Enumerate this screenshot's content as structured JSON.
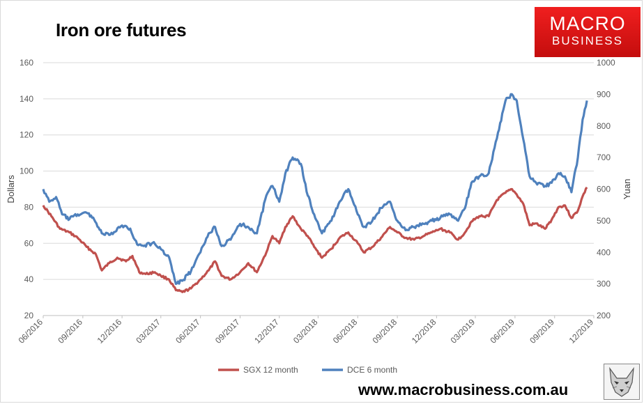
{
  "page": {
    "title": "Iron ore futures",
    "logo": {
      "line1": "MACRO",
      "line2": "BUSINESS"
    },
    "website": "www.macrobusiness.com.au"
  },
  "colors": {
    "sgx": "#c0504d",
    "dce": "#4f81bd",
    "logo_red": "#e21b1b"
  },
  "chart_data": {
    "type": "line",
    "title": "Iron ore futures",
    "x_axis": {
      "type": "date",
      "range": [
        "2016-06",
        "2019-12"
      ],
      "tick_labels": [
        "06/2016",
        "09/2016",
        "12/2016",
        "03/2017",
        "06/2017",
        "09/2017",
        "12/2017",
        "03/2018",
        "06/2018",
        "09/2018",
        "12/2018",
        "03/2019",
        "06/2019",
        "09/2019",
        "12/2019"
      ]
    },
    "y_left": {
      "label": "Dollars",
      "range": [
        20,
        160
      ],
      "ticks": [
        20,
        40,
        60,
        80,
        100,
        120,
        140,
        160
      ]
    },
    "y_right": {
      "label": "Yuan",
      "range": [
        200,
        1000
      ],
      "ticks": [
        200,
        300,
        400,
        500,
        600,
        700,
        800,
        900,
        1000
      ]
    },
    "grid": "horizontal",
    "legend_position": "bottom",
    "series": [
      {
        "name": "SGX 12 month",
        "axis": "left",
        "color": "#c0504d",
        "points": [
          [
            "2016-06-01",
            81
          ],
          [
            "2016-06-20",
            75
          ],
          [
            "2016-07-10",
            68
          ],
          [
            "2016-08-01",
            66
          ],
          [
            "2016-08-20",
            63
          ],
          [
            "2016-09-10",
            58
          ],
          [
            "2016-10-01",
            54
          ],
          [
            "2016-10-15",
            45
          ],
          [
            "2016-11-01",
            49
          ],
          [
            "2016-11-20",
            52
          ],
          [
            "2016-12-10",
            50
          ],
          [
            "2016-12-25",
            53
          ],
          [
            "2017-01-10",
            44
          ],
          [
            "2017-01-25",
            43
          ],
          [
            "2017-02-15",
            44
          ],
          [
            "2017-03-01",
            42
          ],
          [
            "2017-03-20",
            40
          ],
          [
            "2017-04-05",
            34
          ],
          [
            "2017-04-20",
            33
          ],
          [
            "2017-05-10",
            35
          ],
          [
            "2017-06-01",
            40
          ],
          [
            "2017-06-20",
            45
          ],
          [
            "2017-07-05",
            50
          ],
          [
            "2017-07-20",
            42
          ],
          [
            "2017-08-10",
            40
          ],
          [
            "2017-09-01",
            44
          ],
          [
            "2017-09-20",
            49
          ],
          [
            "2017-10-10",
            44
          ],
          [
            "2017-11-01",
            55
          ],
          [
            "2017-11-15",
            64
          ],
          [
            "2017-12-01",
            60
          ],
          [
            "2017-12-15",
            69
          ],
          [
            "2018-01-01",
            75
          ],
          [
            "2018-01-20",
            68
          ],
          [
            "2018-02-05",
            64
          ],
          [
            "2018-02-20",
            58
          ],
          [
            "2018-03-10",
            52
          ],
          [
            "2018-04-01",
            57
          ],
          [
            "2018-04-20",
            63
          ],
          [
            "2018-05-10",
            66
          ],
          [
            "2018-06-01",
            60
          ],
          [
            "2018-06-15",
            55
          ],
          [
            "2018-07-05",
            58
          ],
          [
            "2018-07-25",
            63
          ],
          [
            "2018-08-15",
            69
          ],
          [
            "2018-09-01",
            66
          ],
          [
            "2018-09-20",
            63
          ],
          [
            "2018-10-10",
            62
          ],
          [
            "2018-11-01",
            64
          ],
          [
            "2018-11-20",
            66
          ],
          [
            "2018-12-10",
            68
          ],
          [
            "2019-01-01",
            66
          ],
          [
            "2019-01-20",
            62
          ],
          [
            "2019-02-05",
            66
          ],
          [
            "2019-02-20",
            72
          ],
          [
            "2019-03-10",
            75
          ],
          [
            "2019-04-01",
            75
          ],
          [
            "2019-04-20",
            84
          ],
          [
            "2019-05-10",
            88
          ],
          [
            "2019-05-25",
            90
          ],
          [
            "2019-06-05",
            87
          ],
          [
            "2019-06-20",
            82
          ],
          [
            "2019-07-05",
            70
          ],
          [
            "2019-07-20",
            71
          ],
          [
            "2019-08-10",
            68
          ],
          [
            "2019-08-25",
            73
          ],
          [
            "2019-09-10",
            80
          ],
          [
            "2019-09-25",
            81
          ],
          [
            "2019-10-10",
            74
          ],
          [
            "2019-10-25",
            78
          ],
          [
            "2019-11-05",
            86
          ],
          [
            "2019-11-15",
            91
          ]
        ]
      },
      {
        "name": "DCE 6 month",
        "axis": "right",
        "color": "#4f81bd",
        "points": [
          [
            "2016-06-01",
            600
          ],
          [
            "2016-06-15",
            560
          ],
          [
            "2016-07-01",
            575
          ],
          [
            "2016-07-15",
            520
          ],
          [
            "2016-08-01",
            505
          ],
          [
            "2016-08-20",
            520
          ],
          [
            "2016-09-10",
            525
          ],
          [
            "2016-09-25",
            510
          ],
          [
            "2016-10-15",
            460
          ],
          [
            "2016-11-01",
            455
          ],
          [
            "2016-11-15",
            465
          ],
          [
            "2016-12-01",
            485
          ],
          [
            "2016-12-20",
            475
          ],
          [
            "2017-01-05",
            425
          ],
          [
            "2017-01-20",
            420
          ],
          [
            "2017-02-10",
            430
          ],
          [
            "2017-03-01",
            410
          ],
          [
            "2017-03-20",
            385
          ],
          [
            "2017-04-05",
            300
          ],
          [
            "2017-04-20",
            310
          ],
          [
            "2017-05-10",
            340
          ],
          [
            "2017-06-01",
            400
          ],
          [
            "2017-06-20",
            460
          ],
          [
            "2017-07-05",
            480
          ],
          [
            "2017-07-20",
            420
          ],
          [
            "2017-08-10",
            440
          ],
          [
            "2017-09-01",
            490
          ],
          [
            "2017-09-20",
            480
          ],
          [
            "2017-10-10",
            460
          ],
          [
            "2017-11-01",
            580
          ],
          [
            "2017-11-15",
            610
          ],
          [
            "2017-12-01",
            560
          ],
          [
            "2017-12-15",
            650
          ],
          [
            "2018-01-01",
            700
          ],
          [
            "2018-01-20",
            680
          ],
          [
            "2018-02-05",
            580
          ],
          [
            "2018-02-20",
            520
          ],
          [
            "2018-03-10",
            460
          ],
          [
            "2018-04-01",
            500
          ],
          [
            "2018-04-20",
            560
          ],
          [
            "2018-05-10",
            600
          ],
          [
            "2018-06-01",
            520
          ],
          [
            "2018-06-15",
            480
          ],
          [
            "2018-07-05",
            500
          ],
          [
            "2018-07-25",
            540
          ],
          [
            "2018-08-15",
            560
          ],
          [
            "2018-09-01",
            500
          ],
          [
            "2018-09-20",
            470
          ],
          [
            "2018-10-10",
            480
          ],
          [
            "2018-11-01",
            490
          ],
          [
            "2018-11-20",
            500
          ],
          [
            "2018-12-10",
            510
          ],
          [
            "2019-01-01",
            520
          ],
          [
            "2019-01-20",
            500
          ],
          [
            "2019-02-05",
            540
          ],
          [
            "2019-02-20",
            620
          ],
          [
            "2019-03-10",
            640
          ],
          [
            "2019-04-01",
            650
          ],
          [
            "2019-04-20",
            760
          ],
          [
            "2019-05-10",
            880
          ],
          [
            "2019-05-25",
            900
          ],
          [
            "2019-06-05",
            880
          ],
          [
            "2019-06-20",
            760
          ],
          [
            "2019-07-05",
            640
          ],
          [
            "2019-07-20",
            620
          ],
          [
            "2019-08-10",
            610
          ],
          [
            "2019-08-25",
            620
          ],
          [
            "2019-09-10",
            650
          ],
          [
            "2019-09-25",
            640
          ],
          [
            "2019-10-10",
            590
          ],
          [
            "2019-10-25",
            700
          ],
          [
            "2019-11-05",
            820
          ],
          [
            "2019-11-15",
            880
          ]
        ]
      }
    ]
  }
}
